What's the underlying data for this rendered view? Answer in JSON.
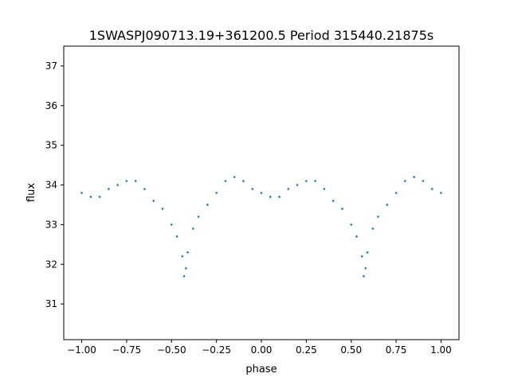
{
  "chart_data": {
    "type": "scatter",
    "title": "1SWASPJ090713.19+361200.5 Period 315440.21875s",
    "xlabel": "phase",
    "ylabel": "flux",
    "xlim": [
      -1.1,
      1.1
    ],
    "ylim": [
      30.1,
      37.5
    ],
    "xticks": [
      -1.0,
      -0.75,
      -0.5,
      -0.25,
      0.0,
      0.25,
      0.5,
      0.75,
      1.0
    ],
    "xtick_labels": [
      "−1.00",
      "−0.75",
      "−0.50",
      "−0.25",
      "0.00",
      "0.25",
      "0.50",
      "0.75",
      "1.00"
    ],
    "yticks": [
      31,
      32,
      33,
      34,
      35,
      36,
      37
    ],
    "ytick_labels": [
      "31",
      "32",
      "33",
      "34",
      "35",
      "36",
      "37"
    ],
    "grid": false,
    "marker_color": "#1f77b4",
    "series": [
      {
        "phase": [
          -1.0,
          -0.95,
          -0.9,
          -0.85,
          -0.8,
          -0.75,
          -0.7,
          -0.65,
          -0.6,
          -0.55,
          -0.5,
          -0.47,
          -0.44,
          -0.43,
          -0.42,
          -0.41,
          -0.38,
          -0.35,
          -0.3,
          -0.25,
          -0.2,
          -0.15,
          -0.1,
          -0.05,
          0.0,
          0.05,
          0.1,
          0.15,
          0.2,
          0.25,
          0.3,
          0.35,
          0.4,
          0.45,
          0.5,
          0.53,
          0.56,
          0.57,
          0.58,
          0.59,
          0.62,
          0.65,
          0.7,
          0.75,
          0.8,
          0.85,
          0.9,
          0.95,
          1.0
        ],
        "flux": [
          33.8,
          33.7,
          33.7,
          33.9,
          34.0,
          34.1,
          34.1,
          33.9,
          33.6,
          33.4,
          33.0,
          32.7,
          32.2,
          31.7,
          31.9,
          32.3,
          32.9,
          33.2,
          33.5,
          33.8,
          34.1,
          34.2,
          34.1,
          33.9,
          33.8,
          33.7,
          33.7,
          33.9,
          34.0,
          34.1,
          34.1,
          33.9,
          33.6,
          33.4,
          33.0,
          32.7,
          32.2,
          31.7,
          31.9,
          32.3,
          32.9,
          33.2,
          33.5,
          33.8,
          34.1,
          34.2,
          34.1,
          33.9,
          33.8
        ]
      }
    ]
  }
}
